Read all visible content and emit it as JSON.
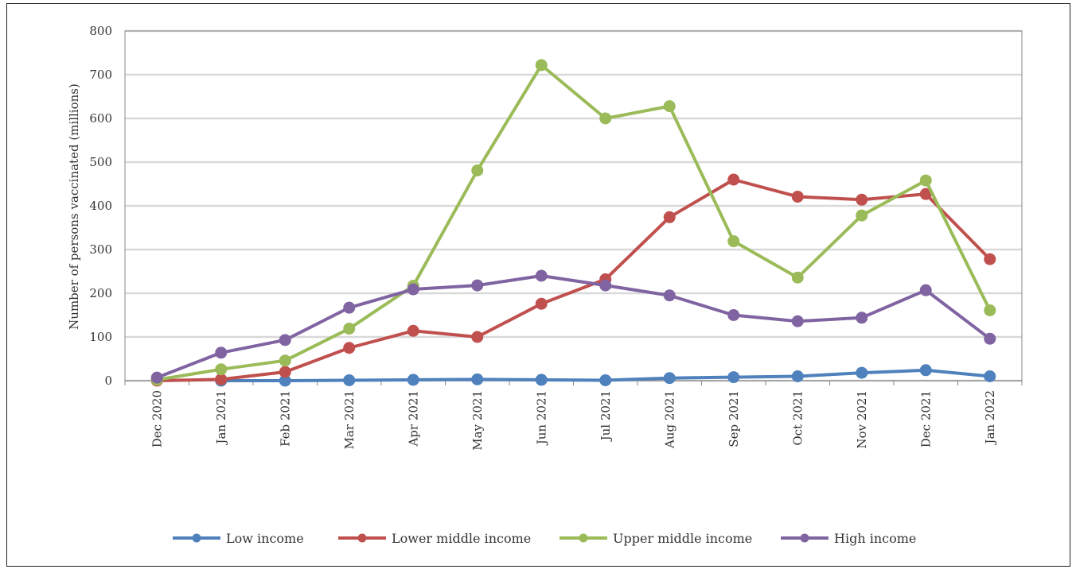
{
  "chart_data": {
    "type": "line",
    "title": "",
    "xlabel": "",
    "ylabel": "Number of persons vaccinated (millions)",
    "ylim": [
      0,
      800
    ],
    "yticks": [
      0,
      100,
      200,
      300,
      400,
      500,
      600,
      700,
      800
    ],
    "grid": true,
    "legend_position": "bottom",
    "categories": [
      "Dec 2020",
      "Jan 2021",
      "Feb 2021",
      "Mar 2021",
      "Apr 2021",
      "May 2021",
      "Jun 2021",
      "Jul 2021",
      "Aug 2021",
      "Sep 2021",
      "Oct 2021",
      "Nov 2021",
      "Dec 2021",
      "Jan 2022"
    ],
    "series": [
      {
        "name": "Low  income",
        "color": "#4f81bd",
        "values": [
          null,
          0,
          0,
          1,
          2,
          3,
          2,
          1,
          6,
          8,
          10,
          18,
          24,
          10
        ]
      },
      {
        "name": "Lower middle income",
        "color": "#c0504d",
        "values": [
          0,
          3,
          20,
          75,
          114,
          100,
          176,
          232,
          374,
          460,
          421,
          414,
          427,
          278
        ]
      },
      {
        "name": "Upper middle income",
        "color": "#9bbb59",
        "values": [
          2,
          26,
          46,
          119,
          217,
          481,
          722,
          600,
          628,
          319,
          236,
          378,
          458,
          161
        ]
      },
      {
        "name": "High income",
        "color": "#8064a2",
        "values": [
          7,
          64,
          93,
          167,
          209,
          218,
          240,
          218,
          195,
          150,
          136,
          144,
          207,
          96
        ]
      }
    ]
  }
}
